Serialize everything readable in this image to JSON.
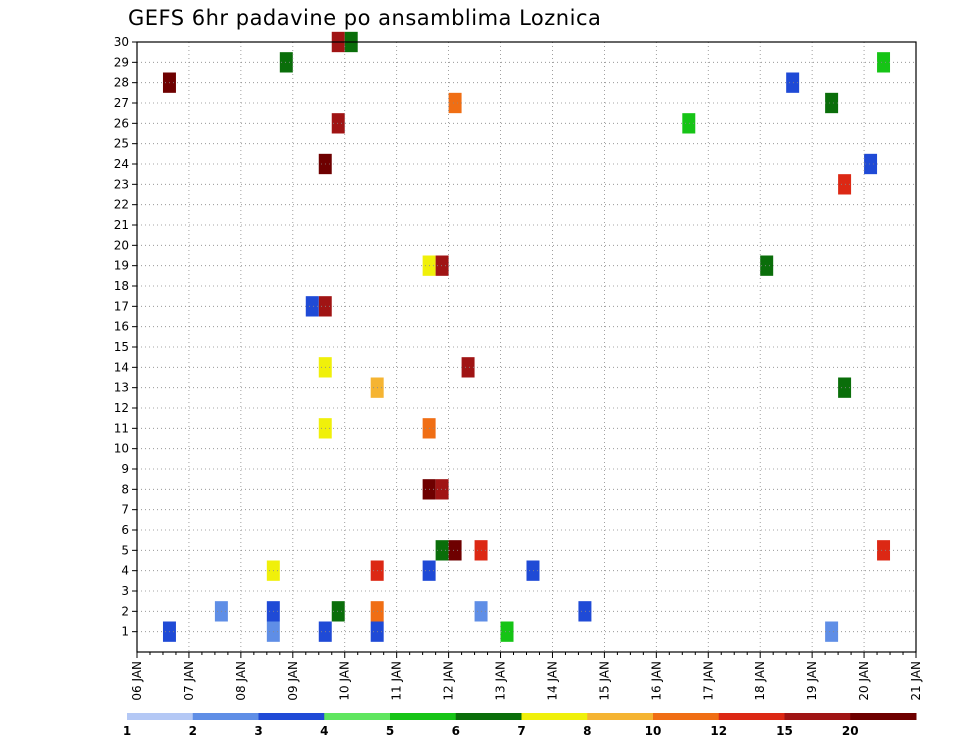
{
  "chart_data": {
    "type": "heatmap",
    "title": "GEFS 6hr padavine po ansamblima Loznica",
    "xlabel": "",
    "ylabel": "",
    "members": [
      "1",
      "2",
      "3",
      "4",
      "5",
      "6",
      "7",
      "8",
      "9",
      "10",
      "11",
      "12",
      "13",
      "14",
      "15",
      "16",
      "17",
      "18",
      "19",
      "20",
      "21",
      "22",
      "23",
      "24",
      "25",
      "26",
      "27",
      "28",
      "29",
      "30"
    ],
    "x_ticks": [
      "06 JAN",
      "07 JAN",
      "08 JAN",
      "09 JAN",
      "10 JAN",
      "11 JAN",
      "12 JAN",
      "13 JAN",
      "14 JAN",
      "15 JAN",
      "16 JAN",
      "17 JAN",
      "18 JAN",
      "19 JAN",
      "20 JAN",
      "21 JAN"
    ],
    "x_range_days": [
      0,
      15
    ],
    "time_step_hours": 6,
    "grid": true,
    "colorbar": {
      "position": "bottom",
      "labels": [
        "1",
        "2",
        "3",
        "4",
        "5",
        "6",
        "7",
        "8",
        "10",
        "12",
        "15",
        "20"
      ],
      "bounds": [
        1,
        2,
        3,
        4,
        5,
        6,
        7,
        8,
        10,
        12,
        15,
        20,
        30
      ],
      "colors": [
        "#b4c8f5",
        "#5f8ee6",
        "#1f4ad6",
        "#5fe65f",
        "#16c416",
        "#0a6e0a",
        "#f0f00a",
        "#f5b432",
        "#f06e14",
        "#dc2814",
        "#a01414",
        "#6e0000"
      ]
    },
    "values": [
      {
        "member": 1,
        "day": "07 JAN",
        "step": 0,
        "class": 3
      },
      {
        "member": 1,
        "day": "09 JAN",
        "step": 0,
        "class": 2
      },
      {
        "member": 1,
        "day": "10 JAN",
        "step": 0,
        "class": 3
      },
      {
        "member": 1,
        "day": "11 JAN",
        "step": 0,
        "class": 3
      },
      {
        "member": 1,
        "day": "13 JAN",
        "step": 2,
        "class": 5
      },
      {
        "member": 1,
        "day": "19 JAN",
        "step": 3,
        "class": 2
      },
      {
        "member": 2,
        "day": "08 JAN",
        "step": 0,
        "class": 2
      },
      {
        "member": 2,
        "day": "09 JAN",
        "step": 0,
        "class": 3
      },
      {
        "member": 2,
        "day": "10 JAN",
        "step": 1,
        "class": 6
      },
      {
        "member": 2,
        "day": "11 JAN",
        "step": 0,
        "class": 10
      },
      {
        "member": 2,
        "day": "13 JAN",
        "step": 0,
        "class": 2
      },
      {
        "member": 2,
        "day": "15 JAN",
        "step": 0,
        "class": 3
      },
      {
        "member": 4,
        "day": "09 JAN",
        "step": 0,
        "class": 7
      },
      {
        "member": 4,
        "day": "11 JAN",
        "step": 0,
        "class": 12
      },
      {
        "member": 4,
        "day": "12 JAN",
        "step": 0,
        "class": 3
      },
      {
        "member": 4,
        "day": "14 JAN",
        "step": 0,
        "class": 3
      },
      {
        "member": 5,
        "day": "12 JAN",
        "step": 1,
        "class": 6
      },
      {
        "member": 5,
        "day": "12 JAN",
        "step": 2,
        "class": 20
      },
      {
        "member": 5,
        "day": "13 JAN",
        "step": 0,
        "class": 12
      },
      {
        "member": 5,
        "day": "20 JAN",
        "step": 3,
        "class": 12
      },
      {
        "member": 8,
        "day": "12 JAN",
        "step": 0,
        "class": 20
      },
      {
        "member": 8,
        "day": "12 JAN",
        "step": 1,
        "class": 15
      },
      {
        "member": 11,
        "day": "10 JAN",
        "step": 0,
        "class": 7
      },
      {
        "member": 11,
        "day": "12 JAN",
        "step": 0,
        "class": 10
      },
      {
        "member": 13,
        "day": "11 JAN",
        "step": 0,
        "class": 8
      },
      {
        "member": 13,
        "day": "20 JAN",
        "step": 0,
        "class": 6
      },
      {
        "member": 14,
        "day": "10 JAN",
        "step": 0,
        "class": 7
      },
      {
        "member": 14,
        "day": "12 JAN",
        "step": 3,
        "class": 15
      },
      {
        "member": 17,
        "day": "10 JAN",
        "step": 0,
        "class": 15
      },
      {
        "member": 17,
        "day": "09 JAN",
        "step": 3,
        "class": 3
      },
      {
        "member": 19,
        "day": "12 JAN",
        "step": 0,
        "class": 7
      },
      {
        "member": 19,
        "day": "12 JAN",
        "step": 1,
        "class": 15
      },
      {
        "member": 19,
        "day": "18 JAN",
        "step": 2,
        "class": 6
      },
      {
        "member": 23,
        "day": "20 JAN",
        "step": 0,
        "class": 12
      },
      {
        "member": 24,
        "day": "10 JAN",
        "step": 0,
        "class": 20
      },
      {
        "member": 24,
        "day": "20 JAN",
        "step": 2,
        "class": 3
      },
      {
        "member": 26,
        "day": "10 JAN",
        "step": 1,
        "class": 15
      },
      {
        "member": 26,
        "day": "17 JAN",
        "step": 0,
        "class": 5
      },
      {
        "member": 27,
        "day": "12 JAN",
        "step": 2,
        "class": 10
      },
      {
        "member": 27,
        "day": "19 JAN",
        "step": 3,
        "class": 6
      },
      {
        "member": 28,
        "day": "07 JAN",
        "step": 0,
        "class": 20
      },
      {
        "member": 28,
        "day": "19 JAN",
        "step": 0,
        "class": 3
      },
      {
        "member": 29,
        "day": "09 JAN",
        "step": 1,
        "class": 6
      },
      {
        "member": 29,
        "day": "20 JAN",
        "step": 3,
        "class": 5
      },
      {
        "member": 30,
        "day": "10 JAN",
        "step": 1,
        "class": 15
      },
      {
        "member": 30,
        "day": "10 JAN",
        "step": 2,
        "class": 6
      }
    ]
  }
}
